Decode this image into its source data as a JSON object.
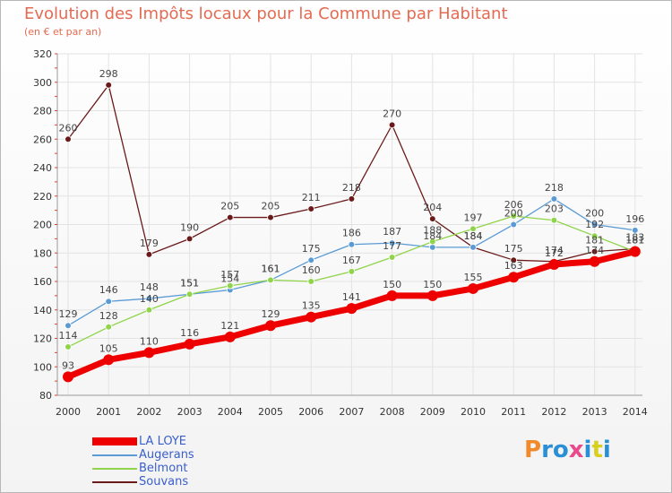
{
  "chart_data": {
    "type": "line",
    "title": "Evolution des Impôts locaux pour la Commune par Habitant",
    "subtitle": "(en € et par an)",
    "x": [
      "2000",
      "2001",
      "2002",
      "2003",
      "2004",
      "2005",
      "2006",
      "2007",
      "2008",
      "2009",
      "2010",
      "2011",
      "2012",
      "2013",
      "2014"
    ],
    "ylim": [
      80,
      320
    ],
    "yticks": [
      80,
      100,
      120,
      140,
      160,
      180,
      200,
      220,
      240,
      260,
      280,
      300,
      320
    ],
    "series": [
      {
        "name": "Souvans",
        "color": "#6b1a1a",
        "values": [
          260,
          298,
          179,
          190,
          205,
          205,
          211,
          218,
          270,
          204,
          184,
          175,
          174,
          181,
          183
        ]
      },
      {
        "name": "Augerans",
        "color": "#5a9bd5",
        "values": [
          129,
          146,
          148,
          151,
          154,
          161,
          175,
          186,
          187,
          184,
          184,
          200,
          218,
          200,
          196
        ]
      },
      {
        "name": "Belmont",
        "color": "#8fd44a",
        "values": [
          114,
          128,
          140,
          151,
          157,
          161,
          160,
          167,
          177,
          188,
          197,
          206,
          203,
          192,
          181
        ]
      },
      {
        "name": "LA LOYE",
        "color": "#ee0000",
        "values": [
          93,
          105,
          110,
          116,
          121,
          129,
          135,
          141,
          150,
          150,
          155,
          163,
          172,
          174,
          181
        ]
      }
    ],
    "labels": {
      "Souvans": [
        260,
        298,
        179,
        190,
        205,
        205,
        211,
        218,
        270,
        204,
        184,
        175,
        174,
        181,
        183
      ],
      "Augerans": [
        129,
        146,
        148,
        151,
        154,
        161,
        175,
        186,
        187,
        184,
        184,
        200,
        218,
        200,
        196
      ],
      "Belmont": [
        114,
        128,
        140,
        151,
        157,
        161,
        160,
        167,
        177,
        188,
        197,
        206,
        203,
        192,
        181
      ],
      "LA LOYE": [
        93,
        105,
        110,
        116,
        121,
        129,
        135,
        141,
        150,
        150,
        155,
        163,
        172,
        174,
        181
      ]
    },
    "legend": [
      "LA LOYE",
      "Augerans",
      "Belmont",
      "Souvans"
    ]
  },
  "logo": {
    "text": "Proxiti"
  }
}
